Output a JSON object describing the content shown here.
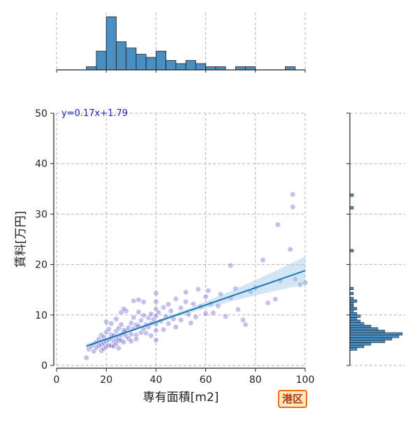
{
  "chart_data": {
    "type": "scatter",
    "xlabel": "専有面積[m2]",
    "ylabel": "賃料[万円]",
    "xlim": [
      0,
      100
    ],
    "ylim": [
      0,
      50
    ],
    "x_ticks": [
      0,
      20,
      40,
      60,
      80,
      100
    ],
    "y_ticks": [
      0,
      10,
      20,
      30,
      40,
      50
    ],
    "grid": true,
    "annotation": "y=0.17x+1.79",
    "badge": "港区",
    "colors": {
      "points": "#2b1fb8",
      "fit": "#1f77b4",
      "band": "#9ec8e8",
      "hist": "#4a8fc4",
      "badge_border": "#ef6c00",
      "badge_text": "#b23c00",
      "badge_fill": "#fde9c9",
      "annotation": "#1f1fbf"
    },
    "fit": {
      "slope": 0.17,
      "intercept": 1.79,
      "x_range": [
        12,
        100
      ]
    },
    "points": [
      [
        12,
        1.5
      ],
      [
        13,
        3.2
      ],
      [
        14,
        3.8
      ],
      [
        15,
        4.2
      ],
      [
        15,
        2.8
      ],
      [
        16,
        3.5
      ],
      [
        16,
        4.6
      ],
      [
        17,
        3.9
      ],
      [
        17,
        5.2
      ],
      [
        18,
        4.1
      ],
      [
        18,
        2.9
      ],
      [
        18,
        6.0
      ],
      [
        19,
        4.4
      ],
      [
        19,
        3.3
      ],
      [
        19,
        5.6
      ],
      [
        20,
        4.8
      ],
      [
        20,
        3.7
      ],
      [
        20,
        6.6
      ],
      [
        20,
        8.6
      ],
      [
        21,
        5.1
      ],
      [
        21,
        4.0
      ],
      [
        21,
        7.2
      ],
      [
        22,
        5.4
      ],
      [
        22,
        3.9
      ],
      [
        22,
        6.1
      ],
      [
        22,
        8.3
      ],
      [
        23,
        4.7
      ],
      [
        23,
        5.9
      ],
      [
        23,
        3.8
      ],
      [
        24,
        5.2
      ],
      [
        24,
        6.8
      ],
      [
        24,
        4.3
      ],
      [
        25,
        5.6
      ],
      [
        25,
        7.4
      ],
      [
        25,
        4.9
      ],
      [
        25,
        3.4
      ],
      [
        26,
        6.1
      ],
      [
        26,
        5.0
      ],
      [
        26,
        8.1
      ],
      [
        27,
        6.4
      ],
      [
        27,
        4.6
      ],
      [
        27,
        7.0
      ],
      [
        28,
        5.8
      ],
      [
        28,
        6.9
      ],
      [
        28,
        10.8
      ],
      [
        29,
        7.5
      ],
      [
        29,
        5.3
      ],
      [
        30,
        6.2
      ],
      [
        30,
        8.4
      ],
      [
        30,
        4.8
      ],
      [
        31,
        7.3
      ],
      [
        31,
        9.5
      ],
      [
        32,
        6.0
      ],
      [
        32,
        8.0
      ],
      [
        32,
        5.2
      ],
      [
        33,
        7.8
      ],
      [
        33,
        10.6
      ],
      [
        34,
        6.5
      ],
      [
        34,
        8.9
      ],
      [
        35,
        7.2
      ],
      [
        35,
        12.6
      ],
      [
        35,
        9.9
      ],
      [
        36,
        8.1
      ],
      [
        36,
        6.4
      ],
      [
        37,
        9.4
      ],
      [
        37,
        7.6
      ],
      [
        38,
        10.2
      ],
      [
        38,
        8.3
      ],
      [
        38,
        5.9
      ],
      [
        39,
        9.1
      ],
      [
        40,
        14.3
      ],
      [
        40,
        12.6
      ],
      [
        40,
        11.2
      ],
      [
        40,
        9.8
      ],
      [
        40,
        8.2
      ],
      [
        40,
        6.9
      ],
      [
        40,
        5.0
      ],
      [
        41,
        10.5
      ],
      [
        42,
        8.8
      ],
      [
        43,
        11.5
      ],
      [
        43,
        7.1
      ],
      [
        44,
        9.7
      ],
      [
        45,
        12.1
      ],
      [
        45,
        8.3
      ],
      [
        46,
        10.8
      ],
      [
        47,
        9.2
      ],
      [
        48,
        13.2
      ],
      [
        48,
        7.6
      ],
      [
        50,
        11.4
      ],
      [
        50,
        9.0
      ],
      [
        52,
        12.6
      ],
      [
        52,
        14.5
      ],
      [
        53,
        10.1
      ],
      [
        54,
        8.4
      ],
      [
        55,
        12.2
      ],
      [
        56,
        9.6
      ],
      [
        57,
        15.1
      ],
      [
        58,
        11.7
      ],
      [
        60,
        13.6
      ],
      [
        60,
        10.3
      ],
      [
        61,
        14.8
      ],
      [
        62,
        12.2
      ],
      [
        63,
        10.4
      ],
      [
        65,
        11.8
      ],
      [
        66,
        14.1
      ],
      [
        68,
        9.7
      ],
      [
        70,
        13.4
      ],
      [
        70,
        19.8
      ],
      [
        72,
        15.2
      ],
      [
        73,
        11.1
      ],
      [
        75,
        9.0
      ],
      [
        76,
        8.1
      ],
      [
        78,
        14.6
      ],
      [
        80,
        15.4
      ],
      [
        83,
        20.9
      ],
      [
        85,
        12.4
      ],
      [
        88,
        13.1
      ],
      [
        89,
        27.9
      ],
      [
        90,
        16.8
      ],
      [
        94,
        23.0
      ],
      [
        95,
        33.9
      ],
      [
        95,
        31.4
      ],
      [
        96,
        17.1
      ],
      [
        98,
        16.0
      ],
      [
        100,
        16.4
      ],
      [
        26,
        10.5
      ],
      [
        31,
        12.8
      ],
      [
        24,
        9.2
      ],
      [
        27,
        11.2
      ],
      [
        33,
        13.0
      ]
    ],
    "x_hist": {
      "bins": [
        [
          12,
          16,
          1
        ],
        [
          16,
          20,
          6
        ],
        [
          20,
          24,
          17
        ],
        [
          24,
          28,
          9
        ],
        [
          28,
          32,
          7
        ],
        [
          32,
          36,
          5
        ],
        [
          36,
          40,
          4
        ],
        [
          40,
          44,
          6
        ],
        [
          44,
          48,
          3
        ],
        [
          48,
          52,
          2
        ],
        [
          52,
          56,
          3
        ],
        [
          56,
          60,
          2
        ],
        [
          60,
          64,
          1
        ],
        [
          64,
          68,
          1
        ],
        [
          68,
          72,
          0
        ],
        [
          72,
          76,
          1
        ],
        [
          76,
          80,
          1
        ],
        [
          80,
          84,
          0
        ],
        [
          84,
          88,
          0
        ],
        [
          88,
          92,
          0
        ],
        [
          92,
          96,
          1
        ],
        [
          96,
          100,
          0
        ]
      ]
    },
    "y_hist": {
      "bins": [
        [
          3.0,
          3.5,
          2
        ],
        [
          3.5,
          4.0,
          4
        ],
        [
          4.0,
          4.5,
          6
        ],
        [
          4.5,
          5.0,
          10
        ],
        [
          5.0,
          5.5,
          12
        ],
        [
          5.5,
          6.0,
          14
        ],
        [
          6.0,
          6.5,
          15
        ],
        [
          6.5,
          7.0,
          10
        ],
        [
          7.0,
          7.5,
          8
        ],
        [
          7.5,
          8.0,
          6
        ],
        [
          8.0,
          8.5,
          4
        ],
        [
          8.5,
          9.0,
          3
        ],
        [
          9.0,
          9.5,
          2
        ],
        [
          9.5,
          10.0,
          3
        ],
        [
          10.0,
          10.5,
          2
        ],
        [
          10.5,
          11.0,
          1
        ],
        [
          11.0,
          11.5,
          2
        ],
        [
          11.5,
          12.0,
          1
        ],
        [
          12.0,
          12.5,
          1
        ],
        [
          12.5,
          13.0,
          2
        ],
        [
          13.0,
          13.5,
          1
        ],
        [
          14.0,
          14.5,
          1
        ],
        [
          15.0,
          15.5,
          1
        ],
        [
          22.5,
          23.0,
          1
        ],
        [
          31.0,
          31.5,
          1
        ],
        [
          33.5,
          34.0,
          1
        ]
      ]
    }
  }
}
